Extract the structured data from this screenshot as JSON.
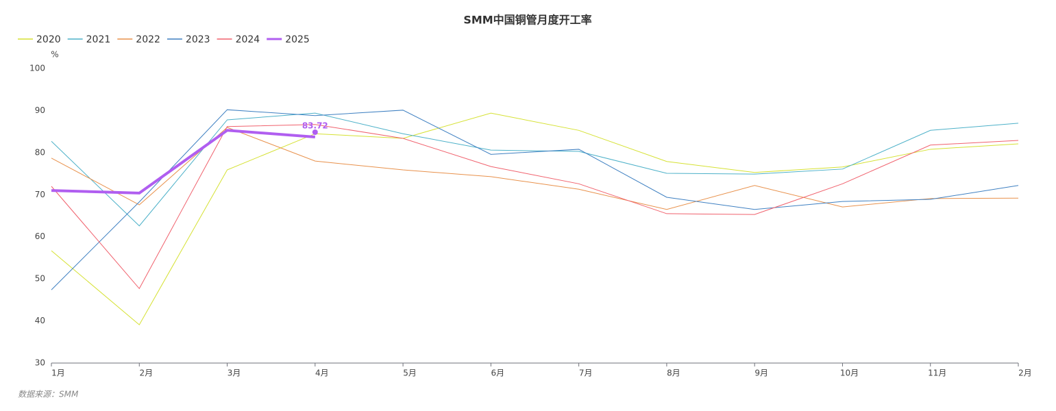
{
  "chart_data": {
    "type": "line",
    "title": "SMM中国铜管月度开工率",
    "y_unit": "%",
    "source": "数据来源：SMM",
    "categories": [
      "1月",
      "2月",
      "3月",
      "4月",
      "5月",
      "6月",
      "7月",
      "8月",
      "9月",
      "10月",
      "11月",
      "2月"
    ],
    "ylim": [
      30,
      100
    ],
    "yticks": [
      30,
      40,
      50,
      60,
      70,
      80,
      90,
      100
    ],
    "series": [
      {
        "name": "2020",
        "color": "#d5e131",
        "values": [
          56.7,
          39.1,
          75.9,
          84.5,
          83.4,
          89.4,
          85.3,
          77.9,
          75.3,
          76.6,
          80.8,
          82.1
        ]
      },
      {
        "name": "2021",
        "color": "#4bb0c8",
        "values": [
          82.7,
          62.6,
          87.8,
          89.4,
          84.5,
          80.6,
          80.3,
          75.1,
          74.9,
          76.1,
          85.3,
          87.0
        ]
      },
      {
        "name": "2022",
        "color": "#e8904a",
        "values": [
          78.7,
          67.6,
          86.0,
          78.0,
          75.9,
          74.3,
          71.3,
          66.5,
          72.2,
          67.1,
          69.1,
          69.2
        ]
      },
      {
        "name": "2023",
        "color": "#3d7fc1",
        "values": [
          47.4,
          68.3,
          90.2,
          88.8,
          90.1,
          79.6,
          80.8,
          69.4,
          66.5,
          68.4,
          68.9,
          72.2
        ]
      },
      {
        "name": "2024",
        "color": "#f0606c",
        "values": [
          72.0,
          47.7,
          86.2,
          86.7,
          83.4,
          76.7,
          72.6,
          65.5,
          65.3,
          72.6,
          81.8,
          82.9
        ]
      },
      {
        "name": "2025",
        "color": "#b05ef0",
        "values": [
          71.0,
          70.4,
          85.3,
          83.72,
          null,
          null,
          null,
          null,
          null,
          null,
          null,
          null
        ]
      }
    ]
  }
}
